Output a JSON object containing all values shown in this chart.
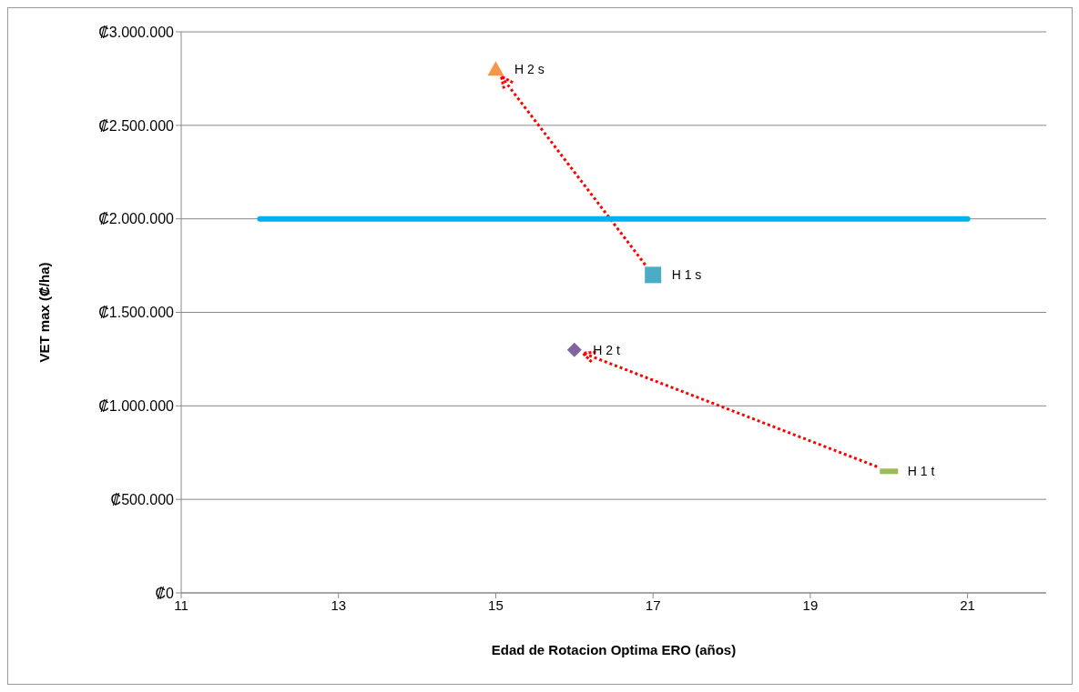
{
  "chart_data": {
    "type": "scatter",
    "xlabel": "Edad de Rotacion Optima ERO (años)",
    "ylabel": "VET max (₡/ha)",
    "xlim": [
      11,
      22
    ],
    "xticks": [
      11,
      13,
      15,
      17,
      19,
      21
    ],
    "ylim": [
      0,
      3000000
    ],
    "yticks": [
      {
        "value": 0,
        "label": "₡0"
      },
      {
        "value": 500000,
        "label": "₡500.000"
      },
      {
        "value": 1000000,
        "label": "₡1.000.000"
      },
      {
        "value": 1500000,
        "label": "₡1.500.000"
      },
      {
        "value": 2000000,
        "label": "₡2.000.000"
      },
      {
        "value": 2500000,
        "label": "₡2.500.000"
      },
      {
        "value": 3000000,
        "label": "₡3.000.000"
      }
    ],
    "grid": "y",
    "series": [
      {
        "name": "H 2 s",
        "color": "#f79646",
        "x": [
          15
        ],
        "values": [
          2800000
        ],
        "marker": "triangle"
      },
      {
        "name": "H 1 s",
        "color": "#4bacc6",
        "x": [
          17
        ],
        "values": [
          1700000
        ],
        "marker": "square"
      },
      {
        "name": "H 2 t",
        "color": "#8064a2",
        "x": [
          16
        ],
        "values": [
          1300000
        ],
        "marker": "diamond"
      },
      {
        "name": "H 1 t",
        "color": "#9bbb59",
        "x": [
          20
        ],
        "values": [
          650000
        ]
      },
      {
        "type": "line",
        "color": "#00b0f0",
        "x": [
          12,
          21
        ],
        "values": [
          2000000,
          2000000
        ],
        "marker": "none"
      }
    ]
  }
}
